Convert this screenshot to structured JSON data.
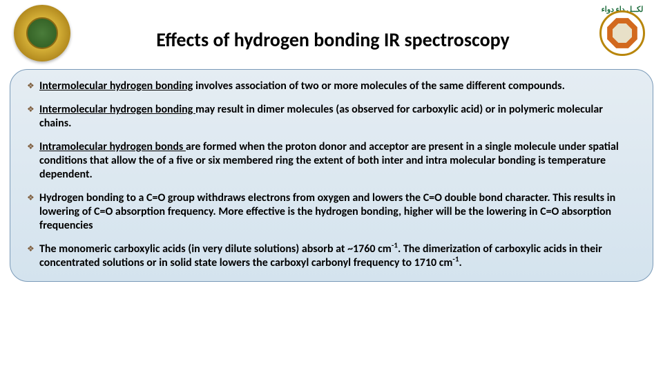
{
  "title": "Effects of hydrogen bonding IR spectroscopy",
  "colors": {
    "title_color": "#000000",
    "text_color": "#000000",
    "box_bg_top": "#e5edf3",
    "box_bg_bottom": "#d4e3ee",
    "box_border": "#7a9ab8",
    "diamond_color": "#7f5f3f",
    "left_logo_gold": "#d4af37",
    "left_logo_green": "#2d5a1f",
    "right_logo_border": "#b8860b",
    "right_logo_octagon": "#d2691e",
    "right_logo_arabic": "#1a6b3a"
  },
  "typography": {
    "title_fontsize": 28,
    "title_weight": 700,
    "body_fontsize": 16,
    "body_weight": 700,
    "font_family": "Calibri"
  },
  "box": {
    "border_radius": 26
  },
  "bullets": [
    {
      "underline": "Intermolecular hydrogen bonding",
      "lead_space": false,
      "rest": " involves association of two or more molecules of the same different compounds."
    },
    {
      "underline": "Intermolecular hydrogen bonding ",
      "lead_space": true,
      "rest": "may result in dimer molecules (as observed for carboxylic acid) or in polymeric molecular chains."
    },
    {
      "underline": "Intramolecular hydrogen bonds ",
      "lead_space": false,
      "rest": "are formed when the proton donor and acceptor are present in a single molecule under spatial conditions that allow the of a five or six membered ring the extent of both inter and intra molecular bonding is temperature dependent."
    },
    {
      "underline": "",
      "lead_space": true,
      "rest": "Hydrogen bonding to a C=O group withdraws electrons from oxygen and lowers the C=O double bond character. This results in lowering of C=O absorption frequency. More effective is the hydrogen bonding, higher will be the lowering in C=O absorption frequencies"
    },
    {
      "underline": "",
      "lead_space": false,
      "html": "The monomeric carboxylic acids (in very dilute solutions) absorb at ~1760 cm<sup>-1</sup>. The dimerization of carboxylic acids in their concentrated solutions or in solid state lowers the carboxyl carbonyl frequency to 1710 cm<sup>-1</sup>."
    }
  ],
  "right_logo_text": "لكــل داء دواء"
}
